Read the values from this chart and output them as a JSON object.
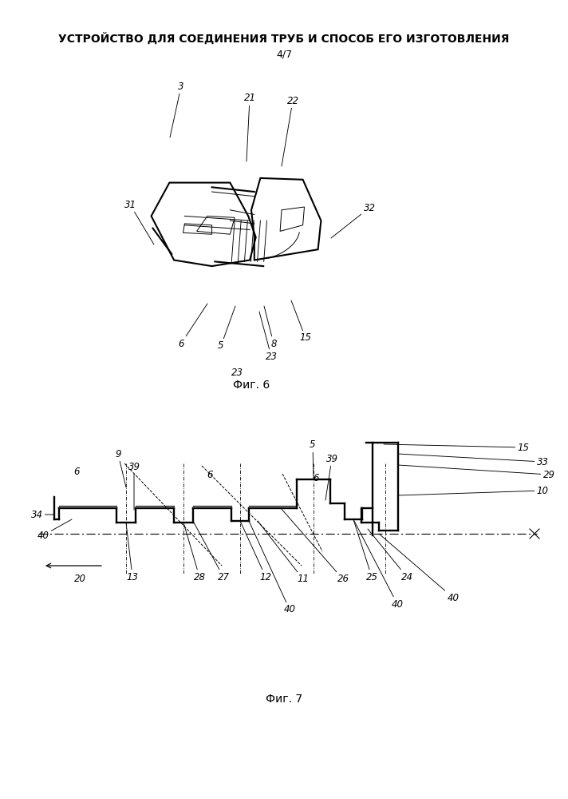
{
  "title": "УСТРОЙСТВО ДЛЯ СОЕДИНЕНИЯ ТРУБ И СПОСОБ ЕГО ИЗГОТОВЛЕНИЯ",
  "subtitle": "4/7",
  "fig6_caption": "Фиг. 6",
  "fig7_caption": "Фиг. 7",
  "bg_color": "#ffffff",
  "lc": "#000000",
  "title_fontsize": 10,
  "label_fontsize": 8.5,
  "caption_fontsize": 10
}
